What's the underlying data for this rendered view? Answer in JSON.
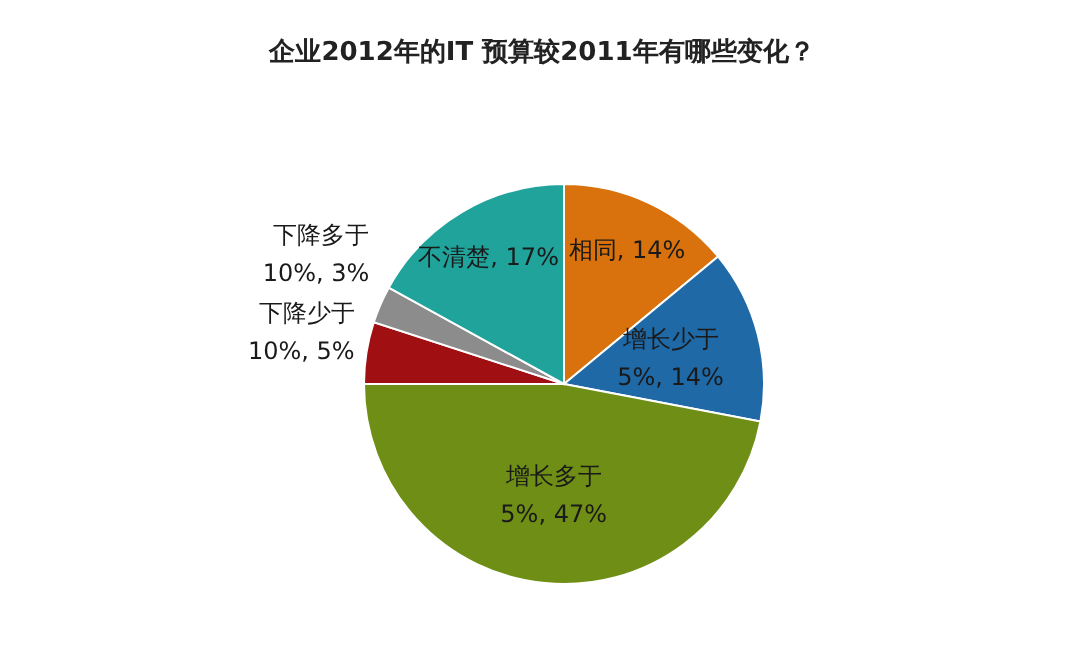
{
  "chart_data": {
    "type": "pie",
    "title": "企业2012年的IT 预算较2011年有哪些变化？",
    "categories": [
      "相同",
      "增长少于5%",
      "增长多于5%",
      "下降少于10%",
      "下降多于10%",
      "不清楚"
    ],
    "values": [
      14,
      14,
      47,
      5,
      3,
      17
    ],
    "colors": [
      "#d9720c",
      "#1f69a6",
      "#6f8e15",
      "#a00f12",
      "#8c8c8c",
      "#1fa39b"
    ],
    "value_labels": [
      ", 14%",
      ", 14%",
      ", 47%",
      ", 5%",
      ", 3%",
      ", 17%"
    ]
  }
}
